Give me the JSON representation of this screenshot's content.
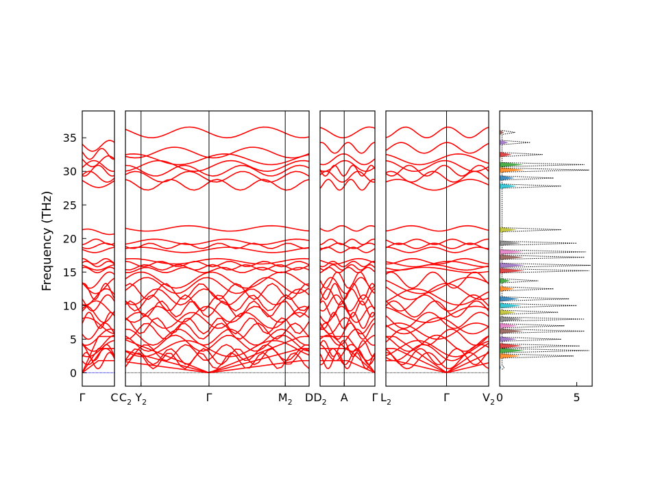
{
  "chart_data": {
    "type": "line",
    "ylabel": "Frequency (THz)",
    "ylim": [
      -2,
      39
    ],
    "yticks": [
      0,
      5,
      10,
      15,
      20,
      25,
      30,
      35
    ],
    "band_color": "#ff0000",
    "zero_line_color": "#0000cc",
    "panels": [
      {
        "name": "band-panel-1",
        "xticks": [
          {
            "label": "Γ",
            "sub": ""
          },
          {
            "label": "C",
            "sub": ""
          }
        ],
        "branch_start_values": [
          0,
          0,
          0,
          1.8,
          2.4,
          3.0,
          3.6,
          4.4,
          5.3,
          6.2,
          7.0,
          7.8,
          8.7,
          9.5,
          10.4,
          11.3,
          12.1,
          13.0,
          13.8,
          15.3,
          15.7,
          16.2,
          16.6,
          18.3,
          18.9,
          19.5,
          21.0,
          28.4,
          29.2,
          30.1,
          30.8,
          31.5,
          32.6,
          33.8
        ]
      },
      {
        "name": "band-panel-2",
        "xticks": [
          {
            "label": "C",
            "sub": "2"
          },
          {
            "label": "Y",
            "sub": "2"
          },
          {
            "label": "Γ",
            "sub": ""
          },
          {
            "label": "M",
            "sub": "2"
          },
          {
            "label": "D",
            "sub": ""
          }
        ],
        "branch_start_values": [
          0,
          0,
          0,
          1.8,
          2.4,
          3.0,
          3.6,
          4.4,
          5.3,
          6.2,
          7.0,
          7.8,
          8.7,
          9.5,
          10.4,
          11.3,
          12.1,
          13.0,
          13.8,
          15.3,
          15.7,
          16.2,
          16.6,
          18.3,
          18.9,
          19.5,
          21.5,
          28.0,
          29.2,
          30.1,
          30.8,
          31.8,
          32.8,
          35.8
        ]
      },
      {
        "name": "band-panel-3",
        "xticks": [
          {
            "label": "D",
            "sub": "2"
          },
          {
            "label": "A",
            "sub": ""
          },
          {
            "label": "Γ",
            "sub": ""
          }
        ],
        "branch_start_values": [
          0,
          0,
          0,
          1.8,
          2.4,
          3.0,
          3.6,
          4.4,
          5.3,
          6.2,
          7.0,
          7.8,
          8.7,
          9.5,
          10.4,
          11.3,
          12.1,
          13.0,
          13.8,
          15.3,
          15.7,
          16.2,
          16.6,
          18.3,
          18.9,
          19.5,
          21.5,
          28.0,
          29.2,
          30.1,
          30.8,
          31.8,
          33.5,
          35.8
        ]
      },
      {
        "name": "band-panel-4",
        "xticks": [
          {
            "label": "L",
            "sub": "2"
          },
          {
            "label": "Γ",
            "sub": ""
          },
          {
            "label": "V",
            "sub": "2"
          }
        ],
        "branch_start_values": [
          0,
          0,
          0,
          1.8,
          2.4,
          3.0,
          3.6,
          4.4,
          5.3,
          6.2,
          7.0,
          7.8,
          8.7,
          9.5,
          10.4,
          11.3,
          12.1,
          13.0,
          13.8,
          15.3,
          15.7,
          16.2,
          16.6,
          18.3,
          18.9,
          19.5,
          21.5,
          28.0,
          29.2,
          30.1,
          30.8,
          31.8,
          33.5,
          35.8
        ]
      }
    ],
    "dos_panel": {
      "name": "dos-panel",
      "xlim": [
        0,
        6
      ],
      "xticks": [
        0,
        5
      ],
      "total_color": "#000000",
      "partial_colors": [
        "#1f77b4",
        "#ff7f0e",
        "#2ca02c",
        "#d62728",
        "#9467bd",
        "#8c564b",
        "#e377c2",
        "#7f7f7f",
        "#bcbd22",
        "#17becf"
      ],
      "peaks": [
        {
          "freq": 0.8,
          "value": 0.3
        },
        {
          "freq": 2.5,
          "value": 4.8
        },
        {
          "freq": 3.3,
          "value": 5.8
        },
        {
          "freq": 4.0,
          "value": 5.2
        },
        {
          "freq": 5.0,
          "value": 4.0
        },
        {
          "freq": 6.2,
          "value": 5.5
        },
        {
          "freq": 7.0,
          "value": 4.2
        },
        {
          "freq": 8.0,
          "value": 5.5
        },
        {
          "freq": 9.0,
          "value": 3.8
        },
        {
          "freq": 10.0,
          "value": 5.0
        },
        {
          "freq": 11.0,
          "value": 4.5
        },
        {
          "freq": 12.5,
          "value": 3.5
        },
        {
          "freq": 13.7,
          "value": 2.5
        },
        {
          "freq": 15.2,
          "value": 5.8
        },
        {
          "freq": 16.0,
          "value": 5.9
        },
        {
          "freq": 17.2,
          "value": 5.5
        },
        {
          "freq": 18.0,
          "value": 5.6
        },
        {
          "freq": 19.3,
          "value": 5.0
        },
        {
          "freq": 21.3,
          "value": 4.0
        },
        {
          "freq": 27.8,
          "value": 4.0
        },
        {
          "freq": 29.0,
          "value": 3.5
        },
        {
          "freq": 30.2,
          "value": 5.8
        },
        {
          "freq": 31.0,
          "value": 5.5
        },
        {
          "freq": 32.5,
          "value": 2.8
        },
        {
          "freq": 34.3,
          "value": 2.0
        },
        {
          "freq": 35.8,
          "value": 1.0
        }
      ]
    }
  }
}
